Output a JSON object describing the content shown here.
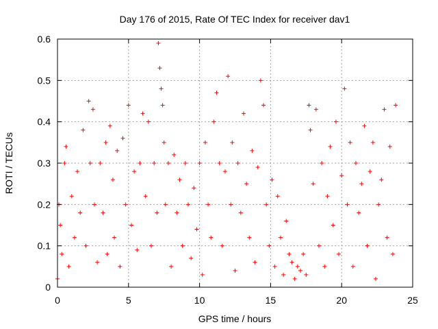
{
  "chart_data": {
    "type": "scatter",
    "title": "Day 176 of 2015, Rate Of TEC Index for receiver dav1",
    "xlabel": "GPS time / hours",
    "ylabel": "ROTI / TECUs",
    "xlim": [
      0,
      25
    ],
    "ylim": [
      0,
      0.6
    ],
    "xticks": [
      0,
      5,
      10,
      15,
      20,
      25
    ],
    "yticks": [
      0,
      0.1,
      0.2,
      0.3,
      0.4,
      0.5,
      0.6
    ],
    "xtick_labels": [
      "0",
      "5",
      "10",
      "15",
      "20",
      "25"
    ],
    "ytick_labels": [
      "0",
      "0.1",
      "0.2",
      "0.3",
      "0.4",
      "0.5",
      "0.6"
    ],
    "grid": true,
    "marker": "plus",
    "marker_color": "#ff0000",
    "series": [
      {
        "x": [
          0.0,
          0.1,
          0.2,
          0.3,
          0.5,
          0.6,
          0.8,
          1.0,
          1.2,
          1.4,
          1.6,
          1.8,
          2.0,
          2.2,
          2.3,
          2.5,
          2.6,
          2.8,
          3.0,
          3.2,
          3.4,
          3.5,
          3.7,
          3.9,
          4.0,
          4.2,
          4.4,
          4.6,
          4.8,
          5.0,
          5.2,
          5.4,
          5.6,
          5.8,
          6.0,
          6.2,
          6.4,
          6.6,
          6.8,
          7.0,
          7.1,
          7.2,
          7.3,
          7.4,
          7.5,
          7.6,
          7.8,
          8.0,
          8.2,
          8.4,
          8.6,
          8.8,
          9.0,
          9.2,
          9.4,
          9.6,
          9.8,
          10.0,
          10.2,
          10.4,
          10.6,
          10.8,
          11.0,
          11.2,
          11.4,
          11.6,
          11.8,
          12.0,
          12.2,
          12.3,
          12.5,
          12.7,
          12.9,
          13.1,
          13.3,
          13.5,
          13.7,
          13.9,
          14.1,
          14.3,
          14.5,
          14.7,
          14.9,
          15.1,
          15.3,
          15.5,
          15.7,
          15.9,
          16.1,
          16.3,
          16.5,
          16.7,
          16.9,
          17.1,
          17.3,
          17.5,
          17.7,
          17.8,
          18.0,
          18.2,
          18.4,
          18.6,
          18.8,
          19.0,
          19.2,
          19.4,
          19.6,
          19.8,
          20.0,
          20.2,
          20.4,
          20.6,
          20.8,
          21.0,
          21.2,
          21.4,
          21.6,
          21.8,
          22.0,
          22.2,
          22.4,
          22.6,
          22.8,
          23.0,
          23.2,
          23.4,
          23.6,
          23.8
        ],
        "y": [
          0.02,
          0.2,
          0.15,
          0.08,
          0.3,
          0.34,
          0.05,
          0.22,
          0.12,
          0.28,
          0.18,
          0.38,
          0.1,
          0.45,
          0.3,
          0.43,
          0.2,
          0.06,
          0.3,
          0.18,
          0.35,
          0.08,
          0.39,
          0.26,
          0.12,
          0.33,
          0.05,
          0.36,
          0.2,
          0.44,
          0.15,
          0.28,
          0.09,
          0.3,
          0.42,
          0.22,
          0.4,
          0.1,
          0.3,
          0.18,
          0.59,
          0.53,
          0.48,
          0.44,
          0.35,
          0.2,
          0.3,
          0.05,
          0.32,
          0.18,
          0.26,
          0.1,
          0.3,
          0.2,
          0.07,
          0.24,
          0.14,
          0.3,
          0.03,
          0.35,
          0.2,
          0.12,
          0.4,
          0.47,
          0.3,
          0.1,
          0.28,
          0.51,
          0.2,
          0.35,
          0.04,
          0.3,
          0.18,
          0.42,
          0.25,
          0.12,
          0.33,
          0.06,
          0.29,
          0.5,
          0.44,
          0.2,
          0.1,
          0.26,
          0.05,
          0.22,
          0.12,
          0.03,
          0.16,
          0.08,
          0.06,
          0.02,
          0.05,
          0.04,
          0.08,
          0.03,
          0.44,
          0.38,
          0.25,
          0.43,
          0.1,
          0.3,
          0.05,
          0.22,
          0.34,
          0.15,
          0.4,
          0.08,
          0.27,
          0.48,
          0.2,
          0.35,
          0.05,
          0.3,
          0.18,
          0.25,
          0.39,
          0.1,
          0.28,
          0.35,
          0.02,
          0.2,
          0.26,
          0.43,
          0.12,
          0.34,
          0.08,
          0.44
        ]
      }
    ]
  }
}
